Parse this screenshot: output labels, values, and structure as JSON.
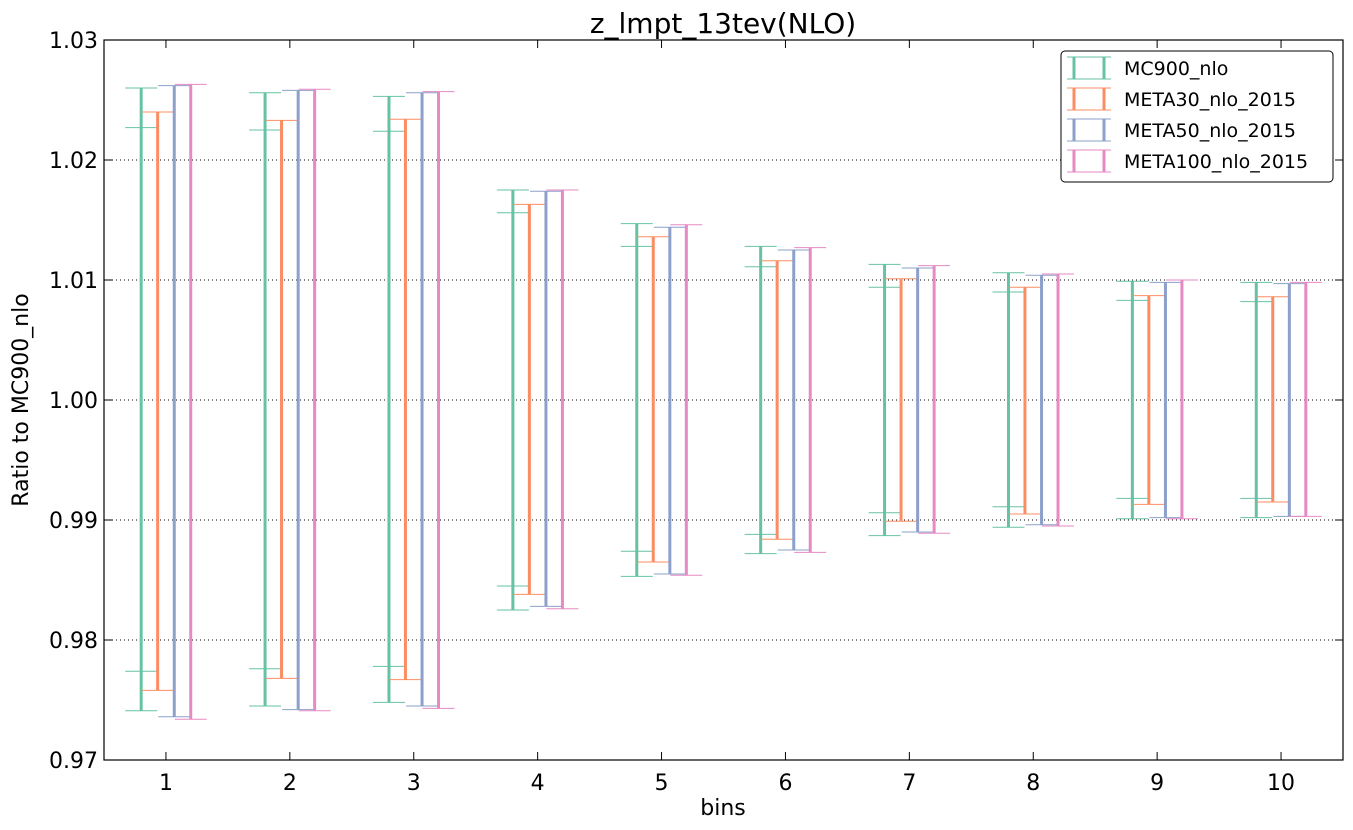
{
  "chart_data": {
    "type": "errorbar",
    "title": "z_lmpt_13tev(NLO)",
    "xlabel": "bins",
    "ylabel": "Ratio to MC900_nlo",
    "ylim": [
      0.97,
      1.03
    ],
    "xlim": [
      0.5,
      10.5
    ],
    "yticks": [
      "0.97",
      "0.98",
      "0.99",
      "1.00",
      "1.01",
      "1.02",
      "1.03"
    ],
    "categories": [
      "1",
      "2",
      "3",
      "4",
      "5",
      "6",
      "7",
      "8",
      "9",
      "10"
    ],
    "grid": "horizontal-dotted",
    "legend_position": "top-right",
    "series": [
      {
        "name": "MC900_nlo",
        "color": "#66c2a5",
        "offset": -0.2,
        "upper": [
          1.026,
          1.0256,
          1.0253,
          1.0175,
          1.0147,
          1.0128,
          1.0113,
          1.0106,
          1.0099,
          1.0098
        ],
        "lower": [
          0.9741,
          0.9745,
          0.9748,
          0.9825,
          0.9853,
          0.9872,
          0.9887,
          0.9894,
          0.9901,
          0.9902
        ],
        "inner_upper": [
          1.0227,
          1.0225,
          1.0224,
          1.0156,
          1.0128,
          1.0111,
          1.0094,
          1.009,
          1.0083,
          1.0082
        ],
        "inner_lower": [
          0.9774,
          0.9776,
          0.9778,
          0.9845,
          0.9874,
          0.9888,
          0.9906,
          0.9911,
          0.9918,
          0.9918
        ]
      },
      {
        "name": "META30_nlo_2015",
        "color": "#fc8d62",
        "offset": -0.067,
        "upper": [
          1.024,
          1.0233,
          1.0234,
          1.0163,
          1.0136,
          1.0116,
          1.0101,
          1.0094,
          1.0087,
          1.0086
        ],
        "lower": [
          0.9758,
          0.9768,
          0.9767,
          0.9838,
          0.9865,
          0.9884,
          0.9899,
          0.9905,
          0.9913,
          0.9915
        ]
      },
      {
        "name": "META50_nlo_2015",
        "color": "#8da0cb",
        "offset": 0.067,
        "upper": [
          1.0262,
          1.0258,
          1.0256,
          1.0174,
          1.0144,
          1.0125,
          1.011,
          1.0104,
          1.0098,
          1.0097
        ],
        "lower": [
          0.9736,
          0.9742,
          0.9745,
          0.9828,
          0.9855,
          0.9875,
          0.989,
          0.9896,
          0.9902,
          0.9903
        ]
      },
      {
        "name": "META100_nlo_2015",
        "color": "#e78ac3",
        "offset": 0.2,
        "upper": [
          1.0263,
          1.0259,
          1.0257,
          1.0175,
          1.0146,
          1.0127,
          1.0112,
          1.0105,
          1.01,
          1.0098
        ],
        "lower": [
          0.9734,
          0.9741,
          0.9743,
          0.9826,
          0.9854,
          0.9873,
          0.9889,
          0.9895,
          0.9901,
          0.9903
        ]
      }
    ]
  }
}
